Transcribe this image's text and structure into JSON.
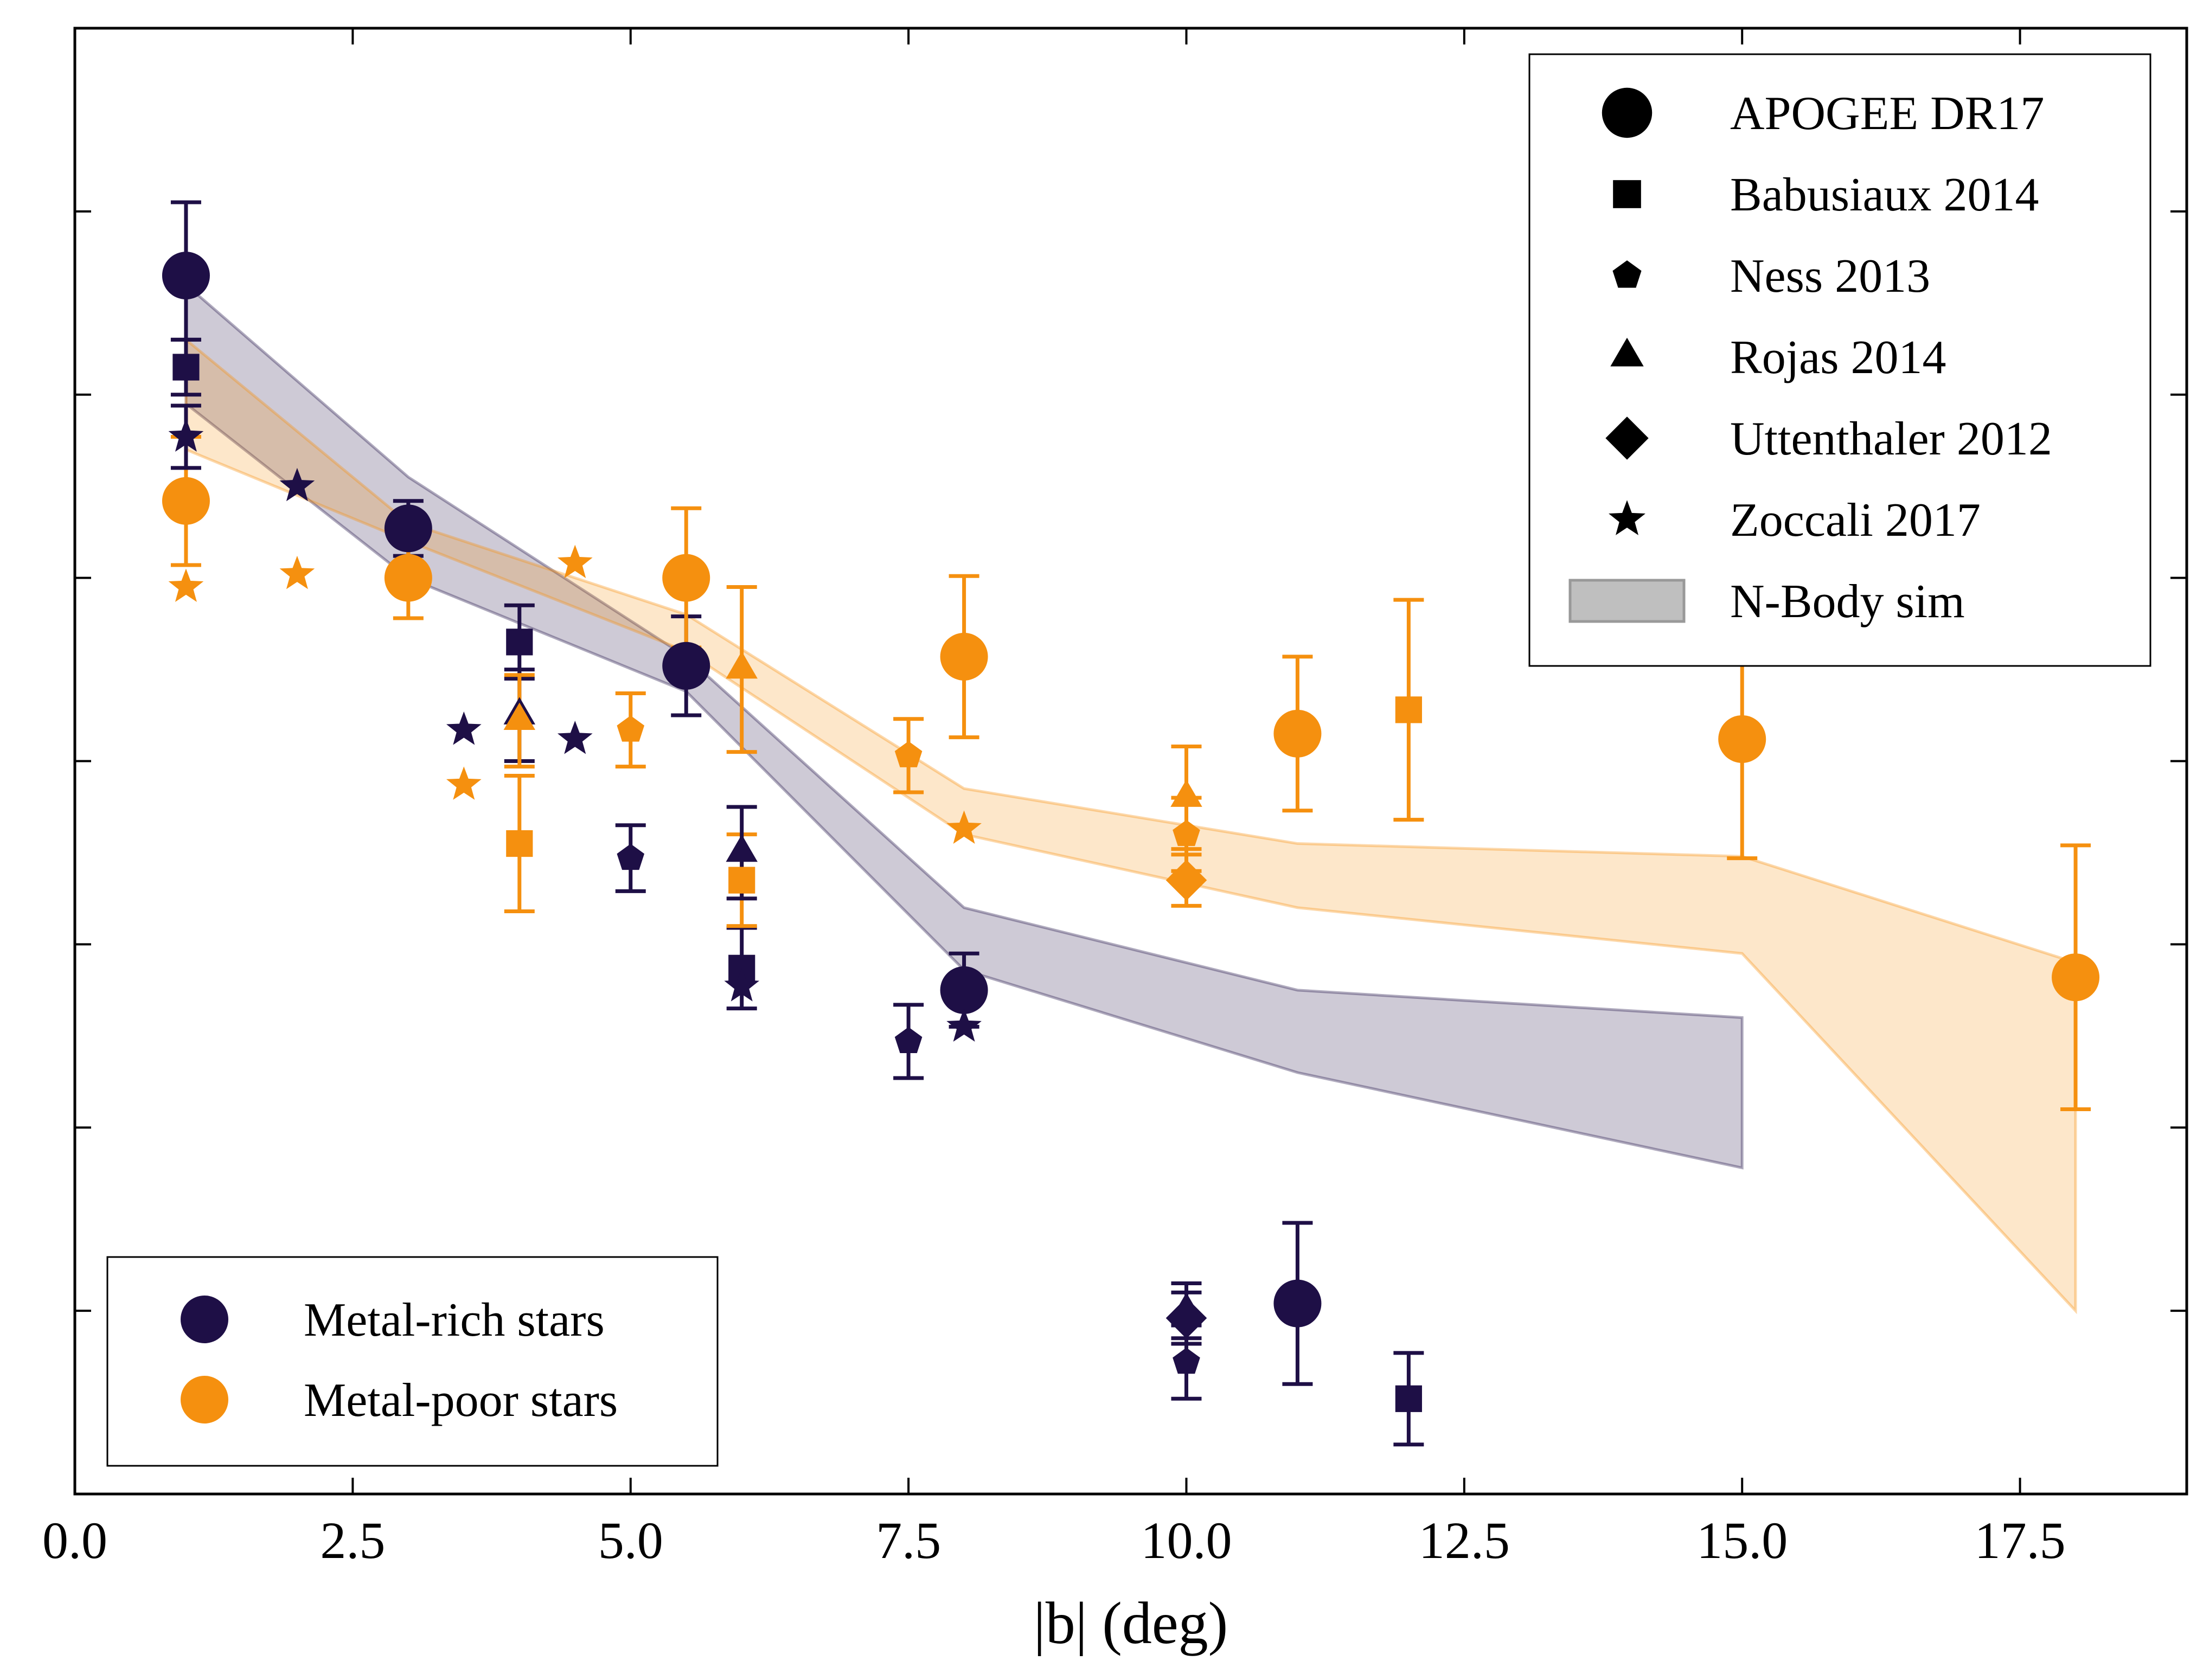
{
  "chart_data": {
    "type": "scatter",
    "xlabel": "|b| (deg)",
    "ylabel": "",
    "xlim": [
      0.0,
      19.0
    ],
    "ylim": [
      0.0,
      8.0
    ],
    "xticks": [
      0.0,
      2.5,
      5.0,
      7.5,
      10.0,
      12.5,
      15.0,
      17.5
    ],
    "xtick_labels": [
      "0.0",
      "2.5",
      "5.0",
      "7.5",
      "10.0",
      "12.5",
      "15.0",
      "17.5"
    ],
    "yticks": [
      1,
      2,
      3,
      4,
      5,
      6,
      7
    ],
    "ytick_labels_visible": false,
    "grid": false,
    "colors": {
      "metal_rich": "#1e0f46",
      "metal_poor": "#f5900f"
    },
    "legends": {
      "symbols": {
        "placement": "top-right",
        "entries": [
          {
            "label": "APOGEE DR17",
            "marker": "circle"
          },
          {
            "label": "Babusiaux 2014",
            "marker": "square"
          },
          {
            "label": "Ness 2013",
            "marker": "pentagon"
          },
          {
            "label": "Rojas 2014",
            "marker": "triangle"
          },
          {
            "label": "Uttenthaler 2012",
            "marker": "diamond"
          },
          {
            "label": "Zoccali 2017",
            "marker": "star"
          },
          {
            "label": "N-Body sim",
            "marker": "band"
          }
        ]
      },
      "populations": {
        "placement": "bottom-left",
        "entries": [
          {
            "label": "Metal-rich stars",
            "color_key": "metal_rich"
          },
          {
            "label": "Metal-poor stars",
            "color_key": "metal_poor"
          }
        ]
      }
    },
    "bands": [
      {
        "color_key": "metal_rich",
        "x": [
          1,
          3,
          5.5,
          8,
          11,
          15
        ],
        "lower": [
          5.95,
          5.0,
          4.38,
          2.86,
          2.3,
          1.78
        ],
        "upper": [
          6.6,
          5.55,
          4.57,
          3.2,
          2.75,
          2.6
        ]
      },
      {
        "color_key": "metal_poor",
        "x": [
          1,
          3,
          5.5,
          8,
          11,
          15,
          18
        ],
        "lower": [
          5.7,
          5.2,
          4.6,
          3.6,
          3.2,
          2.95,
          1.0
        ],
        "upper": [
          6.3,
          5.3,
          4.8,
          3.85,
          3.55,
          3.48,
          2.9
        ]
      }
    ],
    "series": [
      {
        "marker": "circle",
        "points": [
          {
            "x": 1,
            "y": 6.65,
            "yerr": [
              0.35,
              0.4
            ],
            "color_key": "metal_rich"
          },
          {
            "x": 3,
            "y": 5.27,
            "yerr": [
              0.15,
              0.15
            ],
            "color_key": "metal_rich"
          },
          {
            "x": 5.5,
            "y": 4.52,
            "yerr": [
              0.27,
              0.27
            ],
            "color_key": "metal_rich"
          },
          {
            "x": 8,
            "y": 2.75,
            "yerr": [
              0.2,
              0.2
            ],
            "color_key": "metal_rich"
          },
          {
            "x": 11,
            "y": 1.04,
            "yerr": [
              0.44,
              0.44
            ],
            "color_key": "metal_rich"
          },
          {
            "x": 1,
            "y": 5.42,
            "yerr": [
              0.35,
              0.35
            ],
            "color_key": "metal_poor"
          },
          {
            "x": 3,
            "y": 5.0,
            "yerr": [
              0.22,
              0.22
            ],
            "color_key": "metal_poor"
          },
          {
            "x": 5.5,
            "y": 5.0,
            "yerr": [
              0.38,
              0.38
            ],
            "color_key": "metal_poor"
          },
          {
            "x": 8,
            "y": 4.57,
            "yerr": [
              0.44,
              0.44
            ],
            "color_key": "metal_poor"
          },
          {
            "x": 11,
            "y": 4.15,
            "yerr": [
              0.42,
              0.42
            ],
            "color_key": "metal_poor"
          },
          {
            "x": 15,
            "y": 4.12,
            "yerr": [
              0.65,
              0.65
            ],
            "color_key": "metal_poor"
          },
          {
            "x": 18,
            "y": 2.82,
            "yerr": [
              0.72,
              0.72
            ],
            "color_key": "metal_poor"
          }
        ]
      },
      {
        "marker": "square",
        "points": [
          {
            "x": 1,
            "y": 6.15,
            "yerr": [
              0.15,
              0.15
            ],
            "color_key": "metal_rich"
          },
          {
            "x": 4,
            "y": 4.65,
            "yerr": [
              0.2,
              0.2
            ],
            "color_key": "metal_rich"
          },
          {
            "x": 6,
            "y": 2.87,
            "yerr": [
              0.22,
              0.22
            ],
            "color_key": "metal_rich"
          },
          {
            "x": 12,
            "y": 0.52,
            "yerr": [
              0.25,
              0.25
            ],
            "color_key": "metal_rich"
          },
          {
            "x": 4,
            "y": 3.55,
            "yerr": [
              0.37,
              0.37
            ],
            "color_key": "metal_poor"
          },
          {
            "x": 6,
            "y": 3.35,
            "yerr": [
              0.25,
              0.25
            ],
            "color_key": "metal_poor"
          },
          {
            "x": 12,
            "y": 4.28,
            "yerr": [
              0.6,
              0.6
            ],
            "color_key": "metal_poor"
          }
        ]
      },
      {
        "marker": "pentagon",
        "points": [
          {
            "x": 5,
            "y": 3.47,
            "yerr": [
              0.18,
              0.18
            ],
            "color_key": "metal_rich"
          },
          {
            "x": 7.5,
            "y": 2.47,
            "yerr": [
              0.2,
              0.2
            ],
            "color_key": "metal_rich"
          },
          {
            "x": 10,
            "y": 0.72,
            "yerr": [
              0.2,
              0.2
            ],
            "color_key": "metal_rich"
          },
          {
            "x": 5,
            "y": 4.17,
            "yerr": [
              0.2,
              0.2
            ],
            "color_key": "metal_poor"
          },
          {
            "x": 7.5,
            "y": 4.03,
            "yerr": [
              0.2,
              0.2
            ],
            "color_key": "metal_poor"
          },
          {
            "x": 10,
            "y": 3.6,
            "yerr": [
              0.2,
              0.2
            ],
            "color_key": "metal_poor"
          }
        ]
      },
      {
        "marker": "triangle",
        "points": [
          {
            "x": 4,
            "y": 4.25,
            "yerr": [
              0.25,
              0.25
            ],
            "color_key": "metal_rich"
          },
          {
            "x": 6,
            "y": 3.5,
            "yerr": [
              0.25,
              0.25
            ],
            "color_key": "metal_rich"
          },
          {
            "x": 10,
            "y": 1.0,
            "yerr": [
              0.15,
              0.15
            ],
            "color_key": "metal_rich"
          },
          {
            "x": 4,
            "y": 4.22,
            "yerr": [
              0.25,
              0.25
            ],
            "color_key": "metal_poor"
          },
          {
            "x": 6,
            "y": 4.5,
            "yerr": [
              0.45,
              0.45
            ],
            "color_key": "metal_poor"
          },
          {
            "x": 10,
            "y": 3.8,
            "yerr": [
              0.28,
              0.28
            ],
            "color_key": "metal_poor"
          }
        ]
      },
      {
        "marker": "diamond",
        "points": [
          {
            "x": 10,
            "y": 0.96,
            "yerr": [
              0.14,
              0.14
            ],
            "color_key": "metal_rich"
          },
          {
            "x": 10,
            "y": 3.35,
            "yerr": [
              0.14,
              0.14
            ],
            "color_key": "metal_poor"
          }
        ]
      },
      {
        "marker": "star",
        "points": [
          {
            "x": 1,
            "y": 5.77,
            "yerr": [
              0.17,
              0.17
            ],
            "color_key": "metal_rich"
          },
          {
            "x": 2,
            "y": 5.5,
            "color_key": "metal_rich"
          },
          {
            "x": 3.5,
            "y": 4.17,
            "color_key": "metal_rich"
          },
          {
            "x": 4.5,
            "y": 4.12,
            "color_key": "metal_rich"
          },
          {
            "x": 6,
            "y": 2.77,
            "color_key": "metal_rich"
          },
          {
            "x": 8,
            "y": 2.55,
            "color_key": "metal_rich"
          },
          {
            "x": 1,
            "y": 4.95,
            "color_key": "metal_poor"
          },
          {
            "x": 2,
            "y": 5.02,
            "color_key": "metal_poor"
          },
          {
            "x": 3.5,
            "y": 3.87,
            "color_key": "metal_poor"
          },
          {
            "x": 4.5,
            "y": 5.08,
            "color_key": "metal_poor"
          },
          {
            "x": 8,
            "y": 3.63,
            "color_key": "metal_poor"
          }
        ]
      }
    ]
  }
}
